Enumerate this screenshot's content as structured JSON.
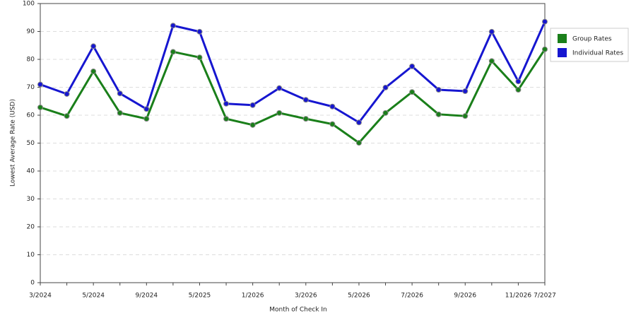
{
  "chart_data": {
    "type": "line",
    "x_label": "Month of Check In",
    "y_label": "Lowest Average Rate (USD)",
    "categories": [
      "3/2024",
      null,
      "5/2024",
      null,
      "9/2024",
      null,
      "5/2025",
      null,
      "1/2026",
      null,
      "3/2026",
      null,
      "5/2026",
      null,
      "7/2026",
      null,
      "9/2026",
      null,
      "11/2026",
      "7/2027"
    ],
    "series": [
      {
        "name": "Group Rates",
        "color": "#1a7f1a",
        "values": [
          62.8,
          59.7,
          75.7,
          60.8,
          58.7,
          82.7,
          80.7,
          58.7,
          56.5,
          60.8,
          58.7,
          56.8,
          50.1,
          60.8,
          68.3,
          60.3,
          59.7,
          79.4,
          69.1,
          83.6
        ]
      },
      {
        "name": "Individual Rates",
        "color": "#1616d0",
        "values": [
          71,
          67.6,
          84.7,
          67.8,
          62.2,
          92.1,
          89.9,
          64.1,
          63.6,
          69.7,
          65.5,
          63.1,
          57.4,
          69.9,
          77.5,
          69.1,
          68.6,
          89.9,
          72.1,
          93.5
        ]
      }
    ],
    "ylim": [
      0,
      100
    ],
    "yticks": [
      0,
      10,
      20,
      30,
      40,
      50,
      60,
      70,
      80,
      90,
      100
    ],
    "grid": true
  }
}
